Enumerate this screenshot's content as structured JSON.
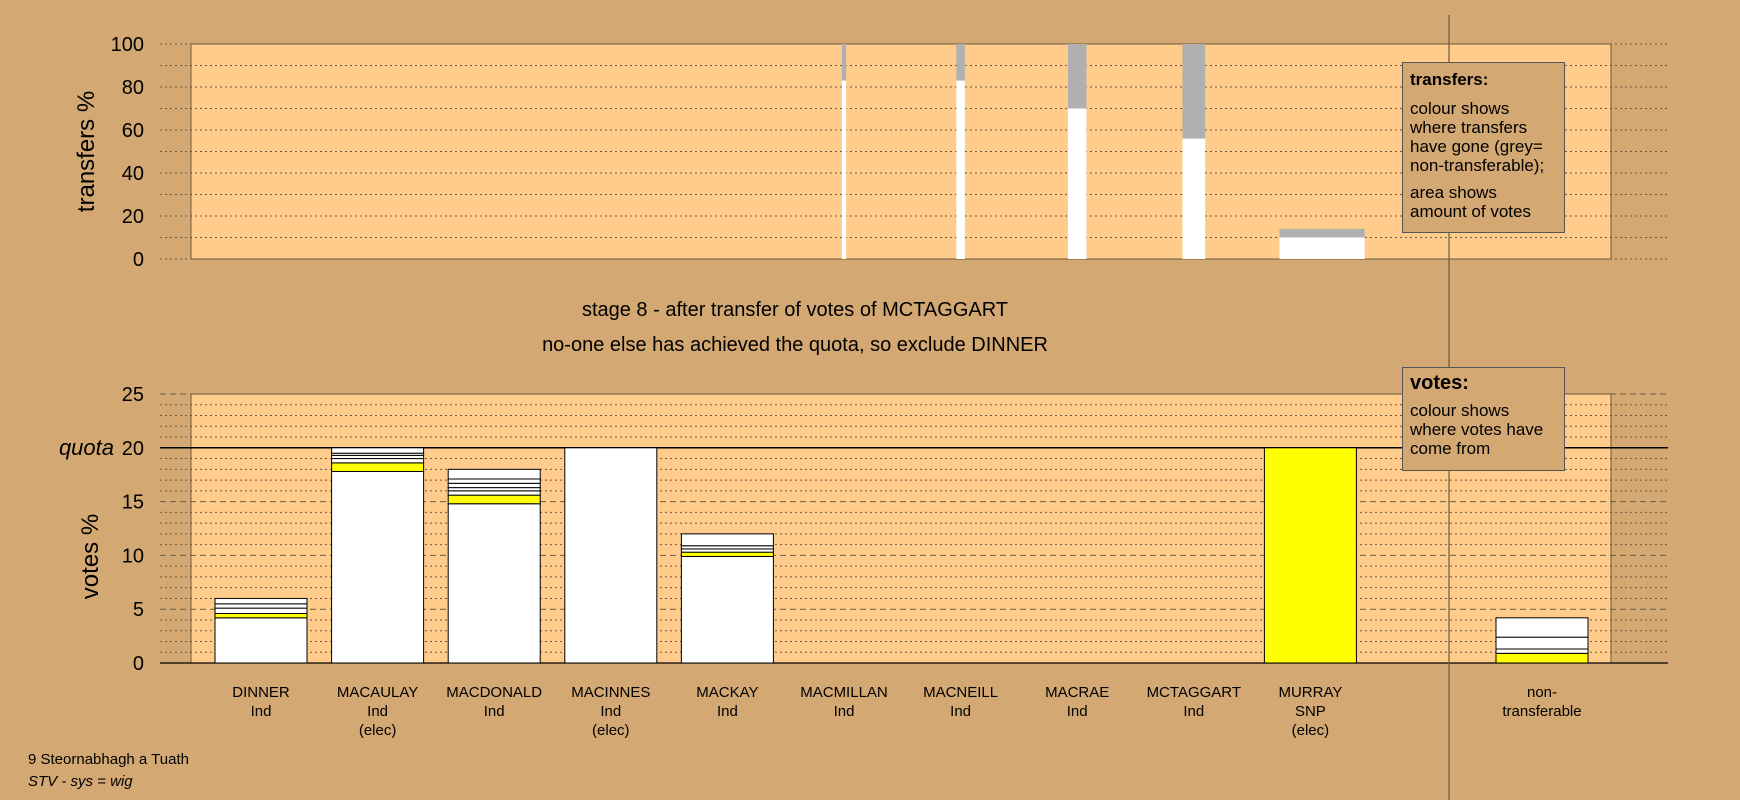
{
  "stage_text": "stage 8 - after transfer of votes of MCTAGGART",
  "exclude_text": "no-one else has achieved the quota, so exclude DINNER",
  "footer": {
    "ward": "9 Steornabhagh a Tuath",
    "system": "STV - sys = wig"
  },
  "legend_transfers": {
    "title": "transfers:",
    "line1": "colour shows where transfers have gone (grey= non-transferable);",
    "line2": "area shows amount of votes"
  },
  "legend_votes": {
    "title": "votes:",
    "line1": "colour shows where votes have come from"
  },
  "colors": {
    "background": "#D3A873",
    "panel": "#FFCC8C",
    "snp": "#FFFF00",
    "ind": "#FFFFFF",
    "nontransferable": "#B0B0B0"
  },
  "chart_data": [
    {
      "type": "bar",
      "name": "transfers",
      "ylabel": "transfers %",
      "ylim": [
        0,
        100
      ],
      "yticks": [
        0,
        20,
        40,
        60,
        80,
        100
      ],
      "columns": [
        {
          "candidate": "MACMILLAN",
          "width_pct": 0.3,
          "white": 83,
          "grey": 17
        },
        {
          "candidate": "MACNEILL",
          "width_pct": 0.6,
          "white": 83,
          "grey": 17
        },
        {
          "candidate": "MACRAE",
          "width_pct": 1.3,
          "white": 70,
          "grey": 30
        },
        {
          "candidate": "MCTAGGART",
          "width_pct": 1.6,
          "white": 56,
          "grey": 44
        },
        {
          "candidate": "DINNER",
          "width_pct": 6.0,
          "white": 10,
          "grey": 4
        }
      ]
    },
    {
      "type": "bar",
      "name": "votes",
      "ylabel": "votes %",
      "ylim": [
        0,
        25
      ],
      "yticks": [
        0,
        5,
        10,
        15,
        20,
        25
      ],
      "quota": 20,
      "quota_label": "quota",
      "candidates": [
        {
          "name": "DINNER",
          "party": "Ind",
          "note": "",
          "segments": [
            [
              "#FFFFFF",
              4.2
            ],
            [
              "#FFFF00",
              0.4
            ],
            [
              "#FFFFFF",
              0.5
            ],
            [
              "#FFFFFF",
              0.4
            ],
            [
              "#FFFFFF",
              0.5
            ]
          ]
        },
        {
          "name": "MACAULAY",
          "party": "Ind",
          "note": "(elec)",
          "segments": [
            [
              "#FFFFFF",
              17.8
            ],
            [
              "#FFFF00",
              0.8
            ],
            [
              "#FFFFFF",
              0.4
            ],
            [
              "#FFFFFF",
              0.3
            ],
            [
              "#FFFFFF",
              0.2
            ],
            [
              "#FFFFFF",
              0.5
            ]
          ]
        },
        {
          "name": "MACDONALD",
          "party": "Ind",
          "note": "",
          "segments": [
            [
              "#FFFFFF",
              14.8
            ],
            [
              "#FFFF00",
              0.8
            ],
            [
              "#FFFFFF",
              0.4
            ],
            [
              "#FFFFFF",
              0.3
            ],
            [
              "#FFFFFF",
              0.4
            ],
            [
              "#FFFFFF",
              0.4
            ],
            [
              "#FFFFFF",
              0.9
            ]
          ]
        },
        {
          "name": "MACINNES",
          "party": "Ind",
          "note": "(elec)",
          "segments": [
            [
              "#FFFFFF",
              20
            ]
          ]
        },
        {
          "name": "MACKAY",
          "party": "Ind",
          "note": "",
          "segments": [
            [
              "#FFFFFF",
              9.9
            ],
            [
              "#FFFF00",
              0.4
            ],
            [
              "#FFFFFF",
              0.3
            ],
            [
              "#FFFFFF",
              0.3
            ],
            [
              "#FFFFFF",
              1.1
            ]
          ]
        },
        {
          "name": "MACMILLAN",
          "party": "Ind",
          "note": "",
          "segments": []
        },
        {
          "name": "MACNEILL",
          "party": "Ind",
          "note": "",
          "segments": []
        },
        {
          "name": "MACRAE",
          "party": "Ind",
          "note": "",
          "segments": []
        },
        {
          "name": "MCTAGGART",
          "party": "Ind",
          "note": "",
          "segments": []
        },
        {
          "name": "MURRAY",
          "party": "SNP",
          "note": "(elec)",
          "segments": [
            [
              "#FFFF00",
              20
            ]
          ]
        }
      ],
      "nontransferable": {
        "label1": "non-",
        "label2": "transferable",
        "segments": [
          [
            "#FFFF00",
            0.9
          ],
          [
            "#FFFFFF",
            0.4
          ],
          [
            "#FFFFFF",
            1.1
          ],
          [
            "#FFFFFF",
            1.8
          ]
        ]
      }
    }
  ]
}
